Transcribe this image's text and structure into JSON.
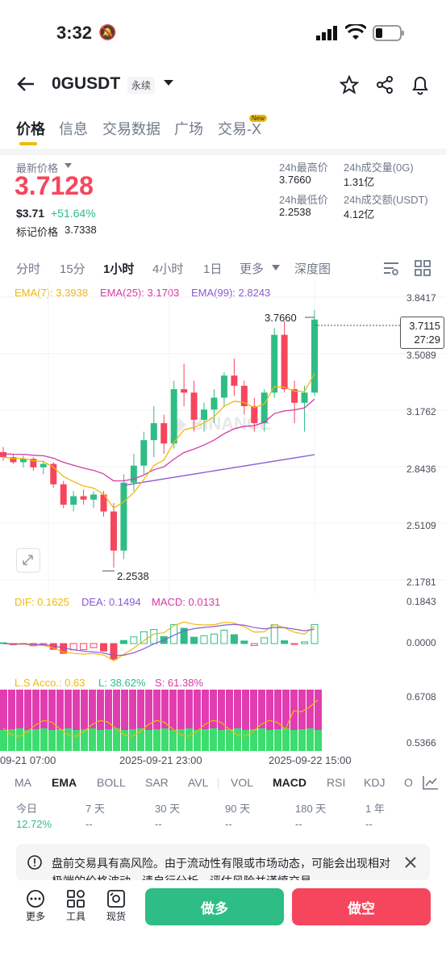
{
  "status": {
    "time": "3:32"
  },
  "header": {
    "symbol": "0GUSDT",
    "badge": "永续"
  },
  "tabs": [
    {
      "label": "价格"
    },
    {
      "label": "信息"
    },
    {
      "label": "交易数据"
    },
    {
      "label": "广场"
    },
    {
      "label": "交易-X",
      "tag": "New"
    }
  ],
  "price": {
    "latest_label": "最新价格",
    "latest": "3.7128",
    "usd": "$3.71",
    "change": "+51.64%",
    "mark_label": "标记价格",
    "mark": "3.7338"
  },
  "stats": {
    "high_label": "24h最高价",
    "high": "3.7660",
    "vol_label": "24h成交量(0G)",
    "vol": "1.31亿",
    "low_label": "24h最低价",
    "low": "2.2538",
    "amt_label": "24h成交额(USDT)",
    "amt": "4.12亿"
  },
  "timebar": [
    "分时",
    "15分",
    "1小时",
    "4小时",
    "1日",
    "更多",
    "深度图"
  ],
  "ema_legend": {
    "ema7": "EMA(7): 3.3938",
    "ema25": "EMA(25): 3.1703",
    "ema99": "EMA(99): 2.8243"
  },
  "price_axis": [
    "3.8417",
    "3.5089",
    "3.1762",
    "2.8436",
    "2.5109",
    "2.1781"
  ],
  "current_tag": {
    "price": "3.7115",
    "countdown": "27:29"
  },
  "chart_labels": {
    "high": "3.7660",
    "low": "2.2538"
  },
  "macd_legend": {
    "dif": "DIF: 0.1625",
    "dea": "DEA: 0.1494",
    "macd": "MACD: 0.0131"
  },
  "macd_axis": [
    "0.1843",
    "0.0000"
  ],
  "ls_legend": {
    "acc": "L.S Acco.: 0.63",
    "l": "L: 38.62%",
    "s": "S: 61.38%"
  },
  "ls_axis": [
    "0.6708",
    "0.5366"
  ],
  "time_axis": [
    "09-21 07:00",
    "2025-09-21 23:00",
    "2025-09-22 15:00"
  ],
  "indicator_tabs": [
    "MA",
    "EMA",
    "BOLL",
    "SAR",
    "AVL",
    "VOL",
    "MACD",
    "RSI",
    "KDJ",
    "O"
  ],
  "performance": {
    "headers": [
      "今日",
      "7 天",
      "30 天",
      "90 天",
      "180 天",
      "1 年"
    ],
    "values": [
      "12.72%",
      "--",
      "--",
      "--",
      "--",
      "--"
    ]
  },
  "notice": {
    "text": "盘前交易具有高风险。由于流动性有限或市场动态，可能会出现相对极端的价格波动。请自行分析、评估风险并谨慎交易。"
  },
  "bottom": {
    "more": "更多",
    "tools": "工具",
    "spot": "现货",
    "long": "做多",
    "short": "做空"
  },
  "colors": {
    "up": "#2ebd85",
    "down": "#f6465d",
    "ema7": "#f0b90b",
    "ema25": "#d63aa5",
    "ema99": "#8a5cd1",
    "accent": "#f0b90b"
  },
  "chart_data": {
    "type": "candlestick",
    "interval": "1h",
    "candles_ohlc_approx": [
      [
        2.93,
        2.96,
        2.88,
        2.9
      ],
      [
        2.9,
        2.92,
        2.86,
        2.87
      ],
      [
        2.87,
        2.91,
        2.84,
        2.89
      ],
      [
        2.89,
        2.9,
        2.82,
        2.84
      ],
      [
        2.84,
        2.88,
        2.8,
        2.86
      ],
      [
        2.86,
        2.87,
        2.72,
        2.74
      ],
      [
        2.74,
        2.76,
        2.6,
        2.62
      ],
      [
        2.62,
        2.7,
        2.58,
        2.67
      ],
      [
        2.67,
        2.71,
        2.62,
        2.65
      ],
      [
        2.65,
        2.7,
        2.6,
        2.68
      ],
      [
        2.68,
        2.7,
        2.55,
        2.58
      ],
      [
        2.58,
        2.63,
        2.25,
        2.35
      ],
      [
        2.35,
        2.8,
        2.3,
        2.75
      ],
      [
        2.75,
        2.92,
        2.7,
        2.85
      ],
      [
        2.85,
        3.05,
        2.8,
        3.0
      ],
      [
        3.0,
        3.2,
        2.9,
        3.1
      ],
      [
        3.1,
        3.15,
        2.92,
        2.98
      ],
      [
        2.98,
        3.35,
        2.95,
        3.3
      ],
      [
        3.3,
        3.45,
        3.2,
        3.28
      ],
      [
        3.28,
        3.35,
        3.05,
        3.12
      ],
      [
        3.12,
        3.22,
        3.05,
        3.18
      ],
      [
        3.18,
        3.3,
        3.1,
        3.25
      ],
      [
        3.25,
        3.4,
        3.2,
        3.38
      ],
      [
        3.38,
        3.48,
        3.26,
        3.32
      ],
      [
        3.32,
        3.35,
        3.15,
        3.2
      ],
      [
        3.2,
        3.25,
        3.05,
        3.1
      ],
      [
        3.1,
        3.3,
        3.05,
        3.28
      ],
      [
        3.28,
        3.66,
        3.25,
        3.62
      ],
      [
        3.62,
        3.7,
        3.28,
        3.3
      ],
      [
        3.3,
        3.35,
        3.1,
        3.22
      ],
      [
        3.22,
        3.32,
        3.05,
        3.28
      ],
      [
        3.28,
        3.766,
        3.26,
        3.71
      ]
    ],
    "ylim": [
      2.1781,
      3.8417
    ]
  }
}
